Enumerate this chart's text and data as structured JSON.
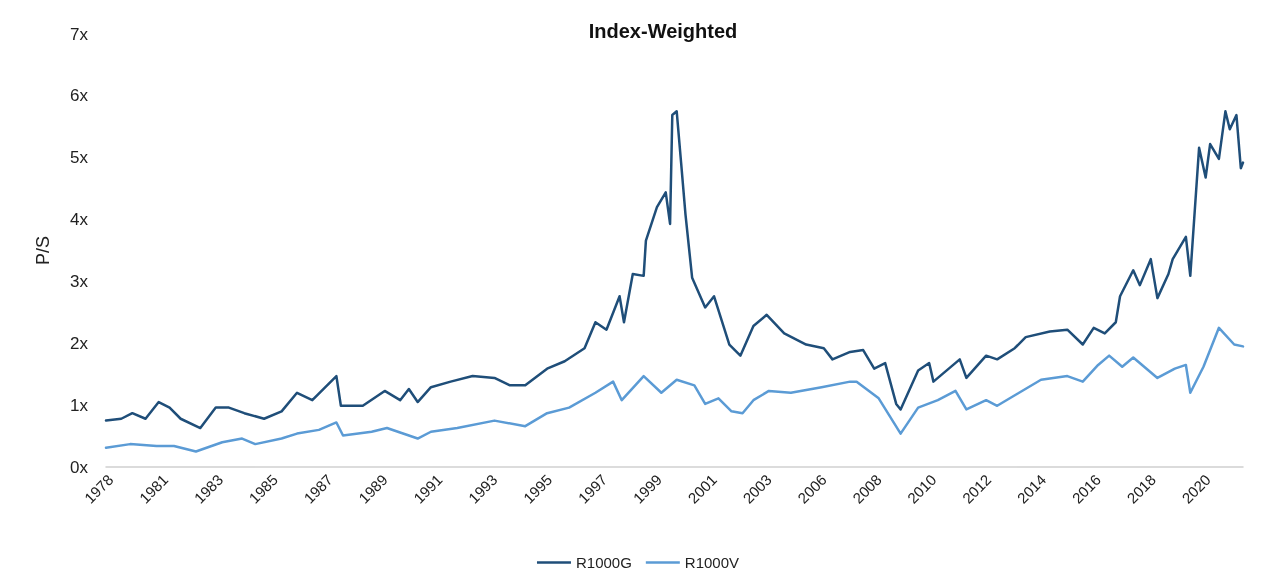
{
  "chart_data": {
    "type": "line",
    "title": "Index-Weighted",
    "ylabel": "P/S",
    "xlim": [
      "1978-10",
      "2021-12"
    ],
    "xticks": [
      {
        "value": "1978-12",
        "label": "1978"
      },
      {
        "value": "1981-01",
        "label": "1981"
      },
      {
        "value": "1983-02",
        "label": "1983"
      },
      {
        "value": "1985-03",
        "label": "1985"
      },
      {
        "value": "1987-04",
        "label": "1987"
      },
      {
        "value": "1989-05",
        "label": "1989"
      },
      {
        "value": "1991-06",
        "label": "1991"
      },
      {
        "value": "1993-07",
        "label": "1993"
      },
      {
        "value": "1995-08",
        "label": "1995"
      },
      {
        "value": "1997-09",
        "label": "1997"
      },
      {
        "value": "1999-10",
        "label": "1999"
      },
      {
        "value": "2001-11",
        "label": "2001"
      },
      {
        "value": "2003-12",
        "label": "2003"
      },
      {
        "value": "2006-01",
        "label": "2006"
      },
      {
        "value": "2008-02",
        "label": "2008"
      },
      {
        "value": "2010-03",
        "label": "2010"
      },
      {
        "value": "2012-04",
        "label": "2012"
      },
      {
        "value": "2014-05",
        "label": "2014"
      },
      {
        "value": "2016-06",
        "label": "2016"
      },
      {
        "value": "2018-07",
        "label": "2018"
      },
      {
        "value": "2020-08",
        "label": "2020"
      }
    ],
    "ylim": [
      0,
      7
    ],
    "yticks": [
      {
        "value": 0,
        "label": "0x"
      },
      {
        "value": 1,
        "label": "1x"
      },
      {
        "value": 2,
        "label": "2x"
      },
      {
        "value": 3,
        "label": "3x"
      },
      {
        "value": 4,
        "label": "4x"
      },
      {
        "value": 5,
        "label": "5x"
      },
      {
        "value": 6,
        "label": "6x"
      },
      {
        "value": 7,
        "label": "7x"
      }
    ],
    "grid": false,
    "legend": "bottom",
    "marker": "none",
    "line_style": "solid",
    "series": [
      {
        "name": "R1000G",
        "color": "#1f4e79",
        "x": [
          "1978-10",
          "1979-05",
          "1979-10",
          "1980-04",
          "1980-10",
          "1981-03",
          "1981-08",
          "1982-05",
          "1982-12",
          "1983-06",
          "1984-01",
          "1984-10",
          "1985-06",
          "1986-01",
          "1986-08",
          "1987-01",
          "1987-07",
          "1987-09",
          "1988-07",
          "1989-05",
          "1989-12",
          "1990-04",
          "1990-08",
          "1991-02",
          "1991-11",
          "1992-09",
          "1993-07",
          "1994-02",
          "1994-09",
          "1995-07",
          "1996-03",
          "1996-12",
          "1997-05",
          "1997-10",
          "1998-04",
          "1998-06",
          "1998-10",
          "1999-03",
          "1999-04",
          "1999-09",
          "2000-01",
          "2000-03",
          "2000-04",
          "2000-06",
          "2000-08",
          "2000-10",
          "2001-01",
          "2001-07",
          "2001-11",
          "2002-06",
          "2002-11",
          "2003-05",
          "2003-11",
          "2004-07",
          "2005-05",
          "2006-01",
          "2006-05",
          "2007-01",
          "2007-07",
          "2007-12",
          "2008-05",
          "2008-10",
          "2008-12",
          "2009-08",
          "2010-01",
          "2010-03",
          "2011-03",
          "2011-06",
          "2012-03",
          "2012-08",
          "2013-04",
          "2013-09",
          "2014-08",
          "2015-04",
          "2015-11",
          "2016-04",
          "2016-09",
          "2017-02",
          "2017-04",
          "2017-10",
          "2018-01",
          "2018-06",
          "2018-09",
          "2019-02",
          "2019-04",
          "2019-10",
          "2019-12",
          "2020-04",
          "2020-07",
          "2020-09",
          "2021-01",
          "2021-04",
          "2021-06",
          "2021-09",
          "2021-11",
          "2021-12"
        ],
        "values": [
          0.75,
          0.78,
          0.87,
          0.78,
          1.05,
          0.96,
          0.78,
          0.63,
          0.96,
          0.96,
          0.87,
          0.78,
          0.9,
          1.2,
          1.08,
          1.26,
          1.47,
          0.99,
          0.99,
          1.23,
          1.08,
          1.26,
          1.05,
          1.29,
          1.38,
          1.47,
          1.44,
          1.32,
          1.32,
          1.59,
          1.71,
          1.92,
          2.34,
          2.22,
          2.76,
          2.34,
          3.12,
          3.09,
          3.66,
          4.2,
          4.44,
          3.93,
          5.69,
          5.75,
          4.92,
          4.08,
          3.06,
          2.58,
          2.76,
          1.98,
          1.8,
          2.28,
          2.46,
          2.16,
          1.98,
          1.92,
          1.74,
          1.86,
          1.89,
          1.59,
          1.68,
          1.02,
          0.93,
          1.56,
          1.68,
          1.38,
          1.74,
          1.44,
          1.8,
          1.74,
          1.92,
          2.1,
          2.19,
          2.22,
          1.98,
          2.25,
          2.16,
          2.34,
          2.76,
          3.18,
          2.94,
          3.36,
          2.73,
          3.12,
          3.36,
          3.72,
          3.09,
          5.16,
          4.68,
          5.22,
          4.98,
          5.75,
          5.46,
          5.69,
          4.83,
          4.92
        ]
      },
      {
        "name": "R1000V",
        "color": "#5b9bd5",
        "x": [
          "1978-10",
          "1979-09",
          "1980-09",
          "1981-05",
          "1982-03",
          "1983-03",
          "1983-12",
          "1984-06",
          "1985-06",
          "1986-01",
          "1986-11",
          "1987-07",
          "1987-10",
          "1988-11",
          "1989-06",
          "1990-08",
          "1991-02",
          "1992-02",
          "1993-07",
          "1994-09",
          "1995-07",
          "1996-05",
          "1997-05",
          "1998-01",
          "1998-05",
          "1999-03",
          "1999-11",
          "2000-06",
          "2001-02",
          "2001-07",
          "2002-01",
          "2002-07",
          "2002-12",
          "2003-05",
          "2003-12",
          "2004-10",
          "2005-12",
          "2007-01",
          "2007-04",
          "2008-02",
          "2008-12",
          "2009-08",
          "2010-05",
          "2011-01",
          "2011-06",
          "2012-03",
          "2012-08",
          "2013-06",
          "2014-04",
          "2015-04",
          "2015-11",
          "2016-06",
          "2016-11",
          "2017-05",
          "2017-10",
          "2018-09",
          "2019-05",
          "2019-10",
          "2019-12",
          "2020-06",
          "2021-01",
          "2021-08",
          "2021-12"
        ],
        "values": [
          0.31,
          0.37,
          0.34,
          0.34,
          0.25,
          0.4,
          0.46,
          0.37,
          0.46,
          0.54,
          0.6,
          0.72,
          0.51,
          0.57,
          0.63,
          0.46,
          0.57,
          0.63,
          0.75,
          0.66,
          0.87,
          0.96,
          1.2,
          1.38,
          1.08,
          1.47,
          1.2,
          1.41,
          1.32,
          1.02,
          1.11,
          0.9,
          0.87,
          1.08,
          1.23,
          1.2,
          1.29,
          1.38,
          1.38,
          1.11,
          0.54,
          0.96,
          1.08,
          1.23,
          0.93,
          1.08,
          0.99,
          1.2,
          1.41,
          1.47,
          1.38,
          1.65,
          1.8,
          1.62,
          1.77,
          1.44,
          1.59,
          1.65,
          1.2,
          1.62,
          2.25,
          1.98,
          1.95
        ]
      }
    ]
  }
}
